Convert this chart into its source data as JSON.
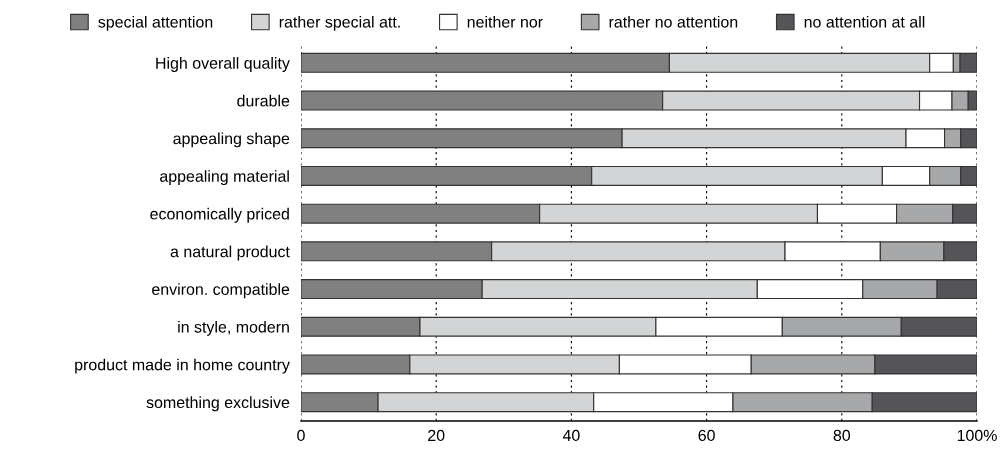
{
  "chart_data": {
    "type": "bar",
    "orientation": "horizontal",
    "stacked": true,
    "legend": "top",
    "grid": "x",
    "line_style": "dotted",
    "categories": [
      "High overall quality",
      "durable",
      "appealing shape",
      "appealing material",
      "economically priced",
      "a natural product",
      "environ. compatible",
      "in style, modern",
      "product made in home country",
      "something exclusive"
    ],
    "series": [
      {
        "name": "special attention",
        "color": "#808080",
        "values": [
          54.5,
          53.5,
          47.5,
          43,
          35.3,
          28.2,
          26.8,
          17.6,
          16.1,
          11.4
        ]
      },
      {
        "name": "rather special att.",
        "color": "#d3d4d5",
        "values": [
          38.5,
          38,
          42,
          43,
          41.1,
          43.4,
          40.7,
          34.9,
          31,
          31.9
        ]
      },
      {
        "name": "neither nor",
        "color": "#ffffff",
        "values": [
          3.5,
          4.8,
          5.7,
          7,
          11.7,
          14.1,
          15.6,
          18.7,
          19.5,
          20.6
        ]
      },
      {
        "name": "rather no attention",
        "color": "#a7a8aa",
        "values": [
          1,
          2.4,
          2.4,
          4.6,
          8.3,
          9.4,
          11,
          17.6,
          18.3,
          20.6
        ]
      },
      {
        "name": "no attention at all",
        "color": "#555559",
        "values": [
          2.5,
          1.3,
          2.4,
          2.4,
          3.6,
          4.9,
          5.9,
          11.2,
          15.1,
          15.5
        ]
      }
    ],
    "xlim": [
      0,
      100
    ],
    "xticks": [
      0,
      20,
      40,
      60,
      80,
      {
        "value": 100,
        "label": "100%"
      }
    ]
  }
}
